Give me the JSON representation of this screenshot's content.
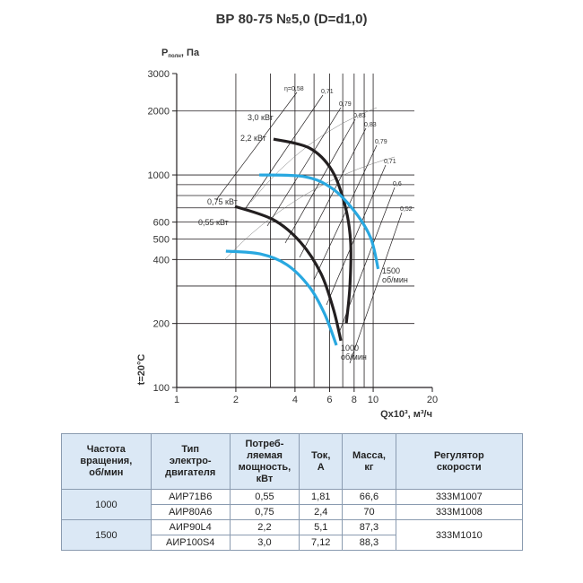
{
  "chart_data": {
    "type": "line",
    "title": "ВР 80-75 №5,0 (D=d1,0)",
    "y_label": {
      "main": "P",
      "sub": "полн",
      "unit": ", Па"
    },
    "x_label": "Qx10³, м³/ч",
    "side_label": "t=20°C",
    "log_x": true,
    "log_y": true,
    "xlim": [
      1,
      20
    ],
    "ylim": [
      100,
      3000
    ],
    "xticks": [
      1,
      2,
      4,
      6,
      8,
      10,
      20
    ],
    "yticks": [
      100,
      200,
      400,
      500,
      600,
      1000,
      2000,
      3000
    ],
    "xgrid": [
      2,
      3,
      4,
      5,
      6,
      7,
      8,
      9,
      10
    ],
    "ygrid": [
      200,
      300,
      400,
      500,
      600,
      700,
      800,
      900,
      1000,
      2000
    ],
    "series": [
      {
        "name": "3,0 кВт",
        "color": "#231f20",
        "x": [
          3.11,
          4.74,
          6.17,
          7.21,
          7.68,
          7.61,
          7.3
        ],
        "values": [
          1475,
          1338,
          1050,
          711,
          482,
          297,
          201
        ]
      },
      {
        "name": "2,2 кВт",
        "color": "#29a8e0",
        "x": [
          2.63,
          4.49,
          6.17,
          8.0,
          9.7,
          10.6
        ],
        "values": [
          1000,
          981,
          865,
          678,
          507,
          361
        ]
      },
      {
        "name": "0,75 кВт",
        "color": "#231f20",
        "x": [
          1.98,
          3.11,
          4.27,
          5.43,
          6.28,
          6.85
        ],
        "values": [
          711,
          615,
          482,
          343,
          233,
          166
        ]
      },
      {
        "name": "0,55 кВт",
        "color": "#29a8e0",
        "x": [
          1.78,
          2.66,
          3.64,
          4.74,
          5.66,
          6.5
        ],
        "values": [
          438,
          425,
          378,
          297,
          222,
          158
        ]
      }
    ],
    "speed_labels": [
      [
        "1500",
        "об/мин"
      ],
      [
        "1000",
        "об/мин"
      ]
    ],
    "efficiency_labels": [
      "η=0,58",
      "0,71",
      "0,79",
      "0,83",
      "0,83",
      "0,79",
      "0,71",
      "0,6",
      "0,52"
    ]
  },
  "table": {
    "header": [
      [
        "Частота",
        "вращения,",
        "об/мин"
      ],
      [
        "Тип",
        "электро-",
        "двигателя"
      ],
      [
        "Потреб-",
        "ляемая",
        "мощность,",
        "кВт"
      ],
      [
        "Ток,",
        "А"
      ],
      [
        "Масса,",
        "кг"
      ],
      [
        "Регулятор",
        "скорости"
      ]
    ],
    "rows": [
      [
        "1000",
        "АИР71В6",
        "0,55",
        "1,81",
        "66,6",
        "333М1007"
      ],
      [
        "",
        "АИР80А6",
        "0,75",
        "2,4",
        "70",
        "333М1008"
      ],
      [
        "1500",
        "АИР90L4",
        "2,2",
        "5,1",
        "87,3",
        "333М1010"
      ],
      [
        "",
        "АИР100S4",
        "3,0",
        "7,12",
        "88,3",
        ""
      ]
    ]
  }
}
